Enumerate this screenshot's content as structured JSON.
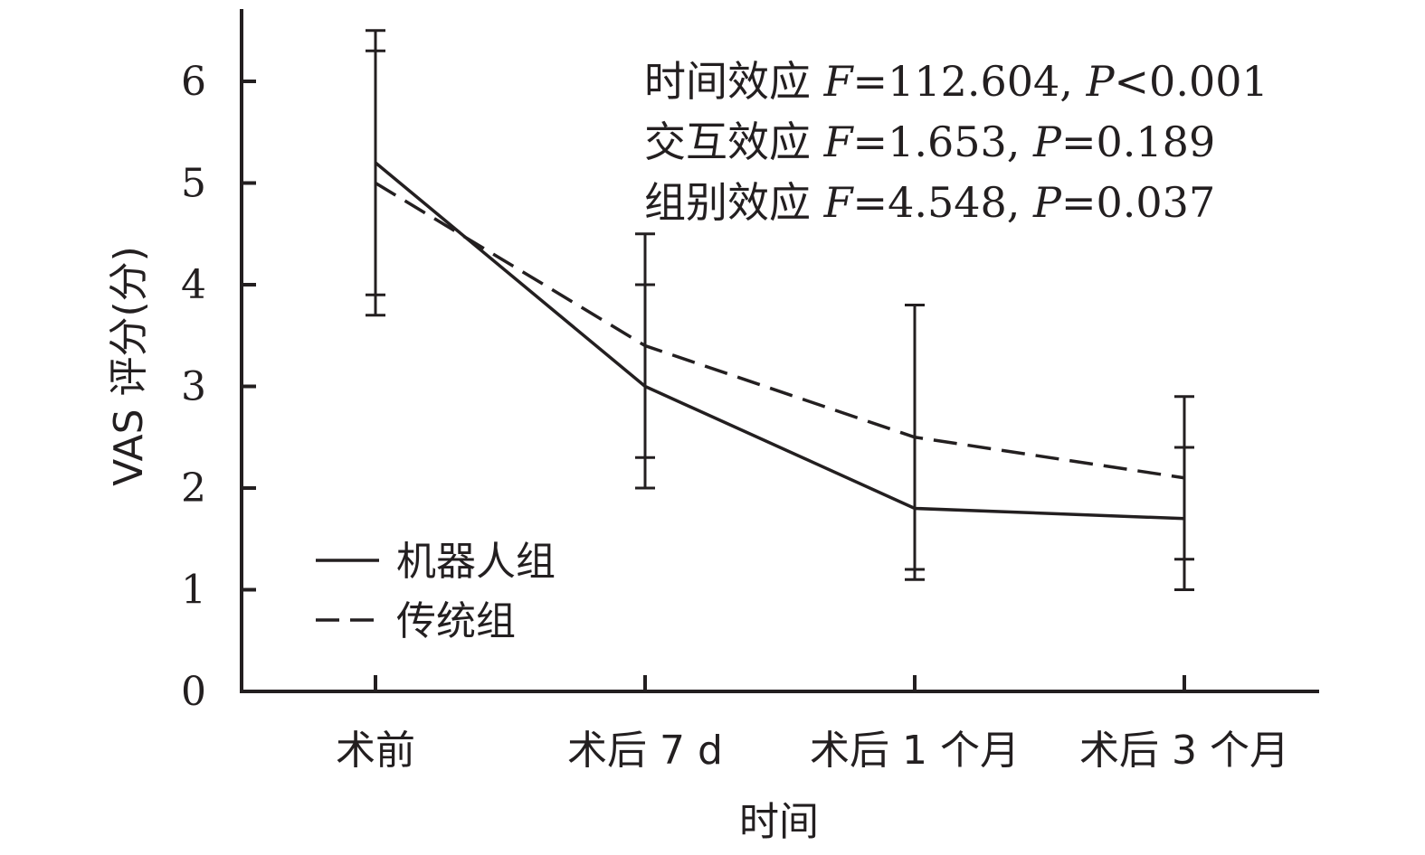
{
  "chart_data": {
    "type": "line",
    "xlabel": "时间",
    "ylabel": "VAS 评分(分)",
    "ylim": [
      0,
      6.5
    ],
    "yticks": [
      0,
      1,
      2,
      3,
      4,
      5,
      6
    ],
    "categories": [
      "术前",
      "术后 7 d",
      "术后 1 个月",
      "术后 3 个月"
    ],
    "series": [
      {
        "name": "机器人组",
        "style": "solid",
        "values": [
          5.2,
          3.0,
          1.8,
          1.7
        ],
        "err_low": [
          3.9,
          2.0,
          1.1,
          1.0
        ],
        "err_high": [
          6.5,
          4.0,
          3.8,
          2.4
        ]
      },
      {
        "name": "传统组",
        "style": "dashed",
        "values": [
          5.0,
          3.4,
          2.5,
          2.1
        ],
        "err_low": [
          3.7,
          2.3,
          1.2,
          1.3
        ],
        "err_high": [
          6.3,
          4.5,
          3.8,
          2.9
        ]
      }
    ],
    "annotations": [
      {
        "label": "时间效应 ",
        "F": "112.604",
        "P": "<0.001"
      },
      {
        "label": "交互效应 ",
        "F": "1.653",
        "P": "=0.189"
      },
      {
        "label": "组别效应 ",
        "F": "4.548",
        "P": "=0.037"
      }
    ],
    "grid": false,
    "legend_position": "bottom-left"
  }
}
